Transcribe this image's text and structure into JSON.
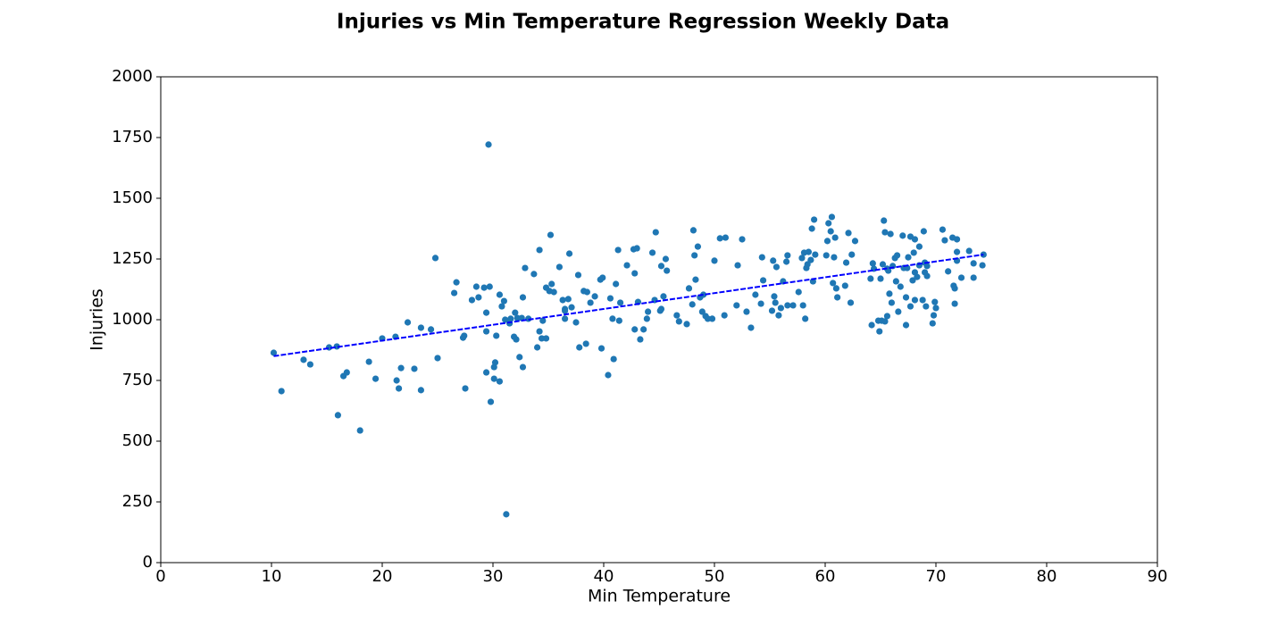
{
  "chart_data": {
    "type": "scatter",
    "title": "Injuries vs Min Temperature Regression Weekly Data",
    "x_label": "Min Temperature",
    "y_label": "Injuries",
    "xlim": [
      0,
      90
    ],
    "xticks": [
      0,
      10,
      20,
      30,
      40,
      50,
      60,
      70,
      80,
      90
    ],
    "ylim": [
      0,
      2000
    ],
    "yticks": [
      0,
      250,
      500,
      750,
      1000,
      1250,
      1500,
      1750,
      2000
    ],
    "series": [
      {
        "color": "#1f77b4",
        "x": [
          10.2,
          10.9,
          12.9,
          13.5,
          15.2,
          15.9,
          16.0,
          16.5,
          16.8,
          18.0,
          18.8,
          19.4,
          20.0,
          21.2,
          21.3,
          21.5,
          21.7,
          22.3,
          22.9,
          23.5,
          23.5,
          24.4,
          24.8,
          25.0,
          26.5,
          26.7,
          27.3,
          27.4,
          27.5,
          28.1,
          28.5,
          28.7,
          29.2,
          29.4,
          29.4,
          29.4,
          29.6,
          29.7,
          29.8,
          30.1,
          30.1,
          30.2,
          30.3,
          30.6,
          30.6,
          30.8,
          31.0,
          31.1,
          31.2,
          31.5,
          31.6,
          31.9,
          32.0,
          32.1,
          32.2,
          32.4,
          32.6,
          32.7,
          32.7,
          32.9,
          33.2,
          33.7,
          34.0,
          34.2,
          34.2,
          34.4,
          34.5,
          34.8,
          34.8,
          35.1,
          35.2,
          35.3,
          35.5,
          36.0,
          36.3,
          36.5,
          36.5,
          36.5,
          36.8,
          36.9,
          37.1,
          37.5,
          37.7,
          37.8,
          38.2,
          38.4,
          38.5,
          38.8,
          39.2,
          39.7,
          39.8,
          39.9,
          40.4,
          40.6,
          40.8,
          40.9,
          41.1,
          41.3,
          41.4,
          41.5,
          42.1,
          42.7,
          42.8,
          42.8,
          43.0,
          43.1,
          43.3,
          43.6,
          43.9,
          44.0,
          44.4,
          44.6,
          44.7,
          45.1,
          45.2,
          45.2,
          45.4,
          45.6,
          45.7,
          46.6,
          46.8,
          47.5,
          47.7,
          48.0,
          48.1,
          48.2,
          48.3,
          48.5,
          48.7,
          49.0,
          48.9,
          49.2,
          49.4,
          49.8,
          50.0,
          50.5,
          50.9,
          51.0,
          52.0,
          52.1,
          52.5,
          52.9,
          53.3,
          53.7,
          54.2,
          54.3,
          54.4,
          55.2,
          55.3,
          55.4,
          55.5,
          55.6,
          55.8,
          56.0,
          56.2,
          56.5,
          56.6,
          56.6,
          57.1,
          57.6,
          57.9,
          58.0,
          58.1,
          58.2,
          58.3,
          58.4,
          58.5,
          58.7,
          58.8,
          58.9,
          59.0,
          59.1,
          60.1,
          60.2,
          60.3,
          60.5,
          60.6,
          60.7,
          60.8,
          60.9,
          61.0,
          61.1,
          61.8,
          61.9,
          62.1,
          62.3,
          62.4,
          62.7,
          64.1,
          64.2,
          64.3,
          64.4,
          64.8,
          64.9,
          65.0,
          65.1,
          65.2,
          65.3,
          65.4,
          65.4,
          65.6,
          65.6,
          65.7,
          65.8,
          65.9,
          66.0,
          66.1,
          66.3,
          66.4,
          66.5,
          66.6,
          66.8,
          67.0,
          67.1,
          67.3,
          67.3,
          67.4,
          67.5,
          67.7,
          67.7,
          67.9,
          68.0,
          68.1,
          68.1,
          68.1,
          68.3,
          68.5,
          68.5,
          68.8,
          68.9,
          69.0,
          69.0,
          69.1,
          69.2,
          69.2,
          69.7,
          69.8,
          69.9,
          70.0,
          70.6,
          70.8,
          71.1,
          71.5,
          71.6,
          71.7,
          71.7,
          71.9,
          71.9,
          71.9,
          72.3,
          73.0,
          73.4,
          73.4,
          74.2,
          74.3
        ],
        "values": [
          864,
          706,
          835,
          816,
          886,
          890,
          607,
          768,
          783,
          544,
          827,
          757,
          923,
          930,
          750,
          717,
          801,
          989,
          798,
          967,
          710,
          960,
          1254,
          842,
          1110,
          1154,
          926,
          934,
          717,
          1081,
          1136,
          1092,
          1132,
          783,
          952,
          1029,
          1721,
          1136,
          662,
          805,
          757,
          824,
          934,
          1103,
          746,
          1055,
          1077,
          1000,
          199,
          985,
          1004,
          930,
          1029,
          919,
          1007,
          846,
          1007,
          805,
          1092,
          1213,
          1004,
          1188,
          886,
          1287,
          952,
          923,
          996,
          923,
          1132,
          1118,
          1349,
          1147,
          1114,
          1217,
          1081,
          1044,
          1004,
          1037,
          1085,
          1272,
          1051,
          989,
          1184,
          886,
          1118,
          901,
          1114,
          1070,
          1096,
          1165,
          882,
          1173,
          772,
          1088,
          1004,
          838,
          1147,
          1287,
          996,
          1070,
          1224,
          1290,
          960,
          1191,
          1294,
          1073,
          919,
          960,
          1004,
          1033,
          1276,
          1081,
          1360,
          1037,
          1044,
          1221,
          1096,
          1250,
          1202,
          1018,
          993,
          982,
          1129,
          1063,
          1368,
          1265,
          1165,
          1301,
          1092,
          1103,
          1033,
          1015,
          1004,
          1004,
          1243,
          1335,
          1018,
          1338,
          1059,
          1224,
          1331,
          1033,
          967,
          1103,
          1066,
          1257,
          1162,
          1037,
          1243,
          1096,
          1070,
          1217,
          1018,
          1048,
          1158,
          1239,
          1059,
          1265,
          1059,
          1114,
          1254,
          1059,
          1276,
          1004,
          1213,
          1228,
          1279,
          1246,
          1375,
          1158,
          1412,
          1268,
          1265,
          1324,
          1397,
          1364,
          1423,
          1151,
          1257,
          1338,
          1129,
          1092,
          1140,
          1235,
          1357,
          1070,
          1268,
          1324,
          1169,
          978,
          1232,
          1210,
          996,
          952,
          1169,
          996,
          1228,
          1408,
          993,
          1360,
          1210,
          1015,
          1202,
          1107,
          1353,
          1070,
          1221,
          1254,
          1158,
          1265,
          1033,
          1136,
          1346,
          1213,
          1092,
          978,
          1213,
          1257,
          1055,
          1342,
          1162,
          1276,
          1331,
          1195,
          1081,
          1176,
          1301,
          1224,
          1081,
          1364,
          1235,
          1195,
          1055,
          1180,
          1221,
          985,
          1018,
          1073,
          1048,
          1371,
          1327,
          1199,
          1338,
          1140,
          1066,
          1129,
          1331,
          1243,
          1279,
          1173,
          1283,
          1173,
          1232,
          1224,
          1268
        ]
      }
    ],
    "regression": {
      "color": "#0000ff",
      "x": [
        10.2,
        74.3
      ],
      "values": [
        850,
        1268
      ]
    }
  }
}
